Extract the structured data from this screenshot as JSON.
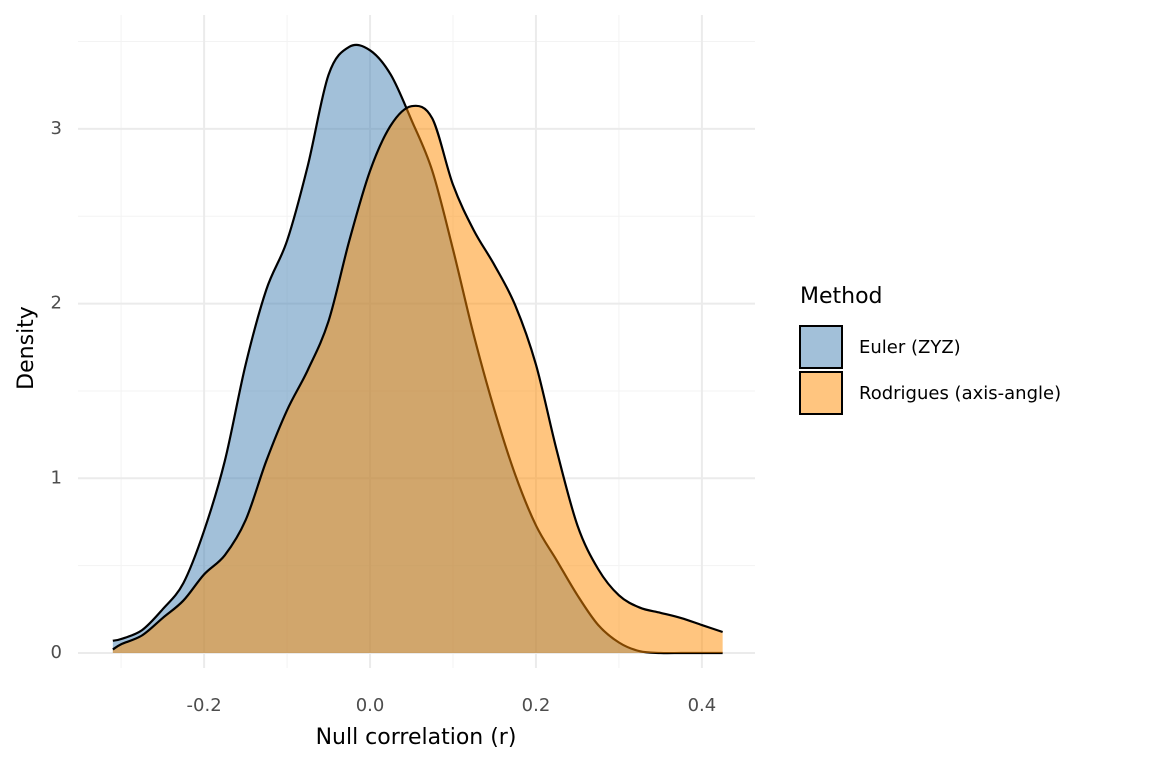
{
  "chart_data": {
    "type": "density",
    "x_label": "Null correlation (r)",
    "y_label": "Density",
    "legend_title": "Method",
    "legend_position": "right",
    "grid": true,
    "xlim": [
      -0.352,
      0.464
    ],
    "ylim": [
      -0.086,
      3.652
    ],
    "xticks": [
      {
        "value": -0.2,
        "label": "-0.2"
      },
      {
        "value": 0,
        "label": "0.0"
      },
      {
        "value": 0.2,
        "label": "0.2"
      },
      {
        "value": 0.4,
        "label": "0.4"
      }
    ],
    "yticks": [
      0,
      1,
      2,
      3
    ],
    "x_minor_grid": [
      -0.3,
      -0.1,
      0.1,
      0.3
    ],
    "y_minor_grid": [
      0.5,
      1.5,
      2.5,
      3.5
    ],
    "x": [
      -0.31,
      -0.3,
      -0.275,
      -0.25,
      -0.225,
      -0.2,
      -0.175,
      -0.15,
      -0.125,
      -0.1,
      -0.075,
      -0.05,
      -0.025,
      0,
      0.025,
      0.05,
      0.075,
      0.1,
      0.125,
      0.15,
      0.175,
      0.2,
      0.225,
      0.25,
      0.275,
      0.3,
      0.325,
      0.35,
      0.375,
      0.4,
      0.425
    ],
    "series": [
      {
        "name": "Euler (ZYZ)",
        "color": "#4682b4",
        "opacity": 0.5,
        "values": [
          0.07,
          0.08,
          0.13,
          0.25,
          0.4,
          0.7,
          1.1,
          1.65,
          2.08,
          2.36,
          2.79,
          3.31,
          3.47,
          3.45,
          3.31,
          3.05,
          2.76,
          2.31,
          1.82,
          1.39,
          1.02,
          0.73,
          0.53,
          0.33,
          0.16,
          0.06,
          0.01,
          0,
          0,
          0,
          0
        ]
      },
      {
        "name": "Rodrigues (axis-angle)",
        "color": "#ff8c00",
        "opacity": 0.5,
        "values": [
          0.02,
          0.05,
          0.1,
          0.2,
          0.3,
          0.45,
          0.56,
          0.76,
          1.1,
          1.39,
          1.62,
          1.9,
          2.36,
          2.76,
          3.02,
          3.13,
          3.06,
          2.68,
          2.42,
          2.22,
          1.99,
          1.65,
          1.16,
          0.73,
          0.48,
          0.33,
          0.26,
          0.23,
          0.2,
          0.16,
          0.12
        ]
      }
    ]
  }
}
